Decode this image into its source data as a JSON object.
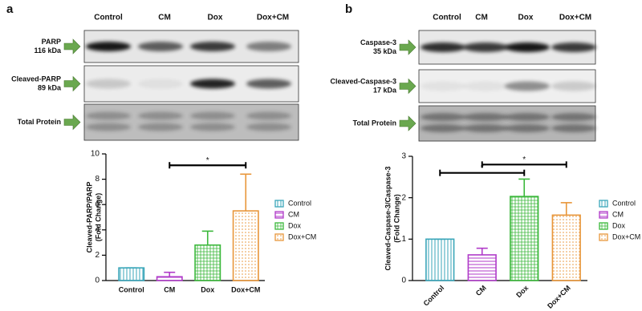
{
  "blots": [
    {
      "panel": "a",
      "lanes": [
        "Control",
        "CM",
        "Dox",
        "Dox+CM"
      ],
      "rows": [
        [
          "PARP",
          "116 kDa"
        ],
        [
          "Cleaved-PARP",
          "89 kDa"
        ],
        [
          "Total  Protein"
        ]
      ]
    },
    {
      "panel": "b",
      "lanes": [
        "Control",
        "CM",
        "Dox",
        "Dox+CM"
      ],
      "rows": [
        [
          "Caspase-3",
          "35 kDa"
        ],
        [
          "Cleaved-Caspase-3",
          "17 kDa"
        ],
        [
          "Total  Protein"
        ]
      ]
    }
  ],
  "chart_data": [
    {
      "type": "bar",
      "ylabel": [
        "Cleaved-PARP/PARP",
        "(Fold Change)"
      ],
      "categories": [
        "Control",
        "CM",
        "Dox",
        "Dox+CM"
      ],
      "values": [
        1,
        0.3,
        2.8,
        5.5
      ],
      "errors": [
        0,
        0.35,
        1.1,
        2.9
      ],
      "colors": [
        "#3aa6b9",
        "#b03bc9",
        "#3bb83b",
        "#e8963a"
      ],
      "patterns": [
        "vertical",
        "horizontal",
        "grid",
        "dots"
      ],
      "ylim": [
        0,
        10
      ],
      "yticks": [
        0,
        2,
        4,
        6,
        8,
        10
      ],
      "xtick_rotation": 0,
      "legend": "right",
      "brackets": [
        {
          "from": 1,
          "to": 3,
          "y": 9.1,
          "label": "*"
        }
      ]
    },
    {
      "type": "bar",
      "ylabel": [
        "Cleaved-Caspase-3/Caspase-3",
        "(Fold Change)"
      ],
      "categories": [
        "Control",
        "CM",
        "Dox",
        "Dox+CM"
      ],
      "values": [
        1,
        0.62,
        2.03,
        1.58
      ],
      "errors": [
        0,
        0.16,
        0.42,
        0.3
      ],
      "colors": [
        "#3aa6b9",
        "#b03bc9",
        "#3bb83b",
        "#e8963a"
      ],
      "patterns": [
        "vertical",
        "horizontal",
        "grid",
        "dots"
      ],
      "ylim": [
        0,
        3
      ],
      "yticks": [
        0,
        1,
        2,
        3
      ],
      "xtick_rotation": -45,
      "legend": "right",
      "brackets": [
        {
          "from": 0,
          "to": 2,
          "y": 2.6,
          "label": "*"
        },
        {
          "from": 1,
          "to": 3,
          "y": 2.8,
          "label": "*"
        }
      ]
    }
  ]
}
